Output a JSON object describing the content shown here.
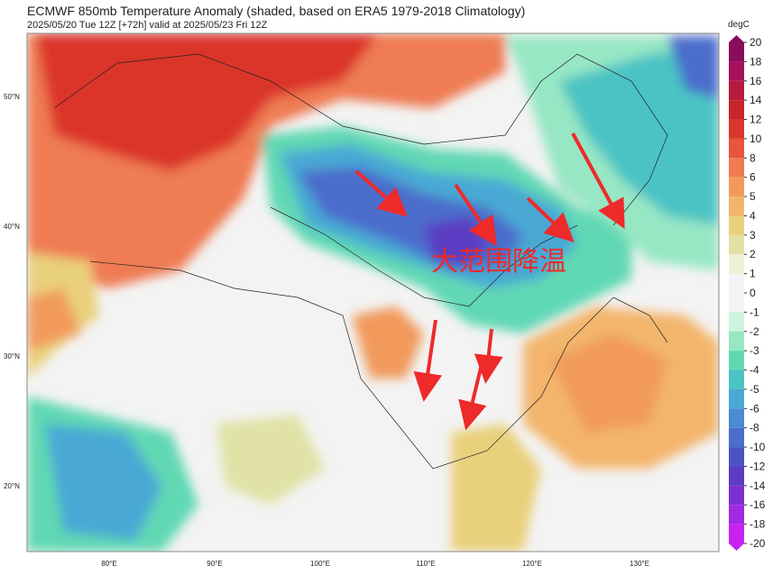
{
  "map": {
    "title": "ECMWF 850mb Temperature Anomaly (shaded, based on ERA5 1979-2018 Climatology)",
    "subtitle": "2025/05/20 Tue 12Z [+72h] valid at 2025/05/23 Fri 12Z",
    "annotation": "大范围降温",
    "lat_labels": [
      "50°N",
      "40°N",
      "30°N",
      "20°N"
    ],
    "lon_labels": [
      "80°E",
      "90°E",
      "100°E",
      "110°E",
      "120°E",
      "130°E"
    ]
  },
  "colorbar": {
    "unit": "degC",
    "ticks": [
      20,
      18,
      16,
      14,
      12,
      10,
      8,
      6,
      5,
      4,
      3,
      2,
      1,
      0,
      -1,
      -2,
      -3,
      -4,
      -5,
      -6,
      -8,
      -10,
      -12,
      -14,
      -16,
      -18,
      -20
    ],
    "colors": [
      "#8a0c5c",
      "#a3115a",
      "#b81a3e",
      "#c9242a",
      "#db352c",
      "#e8553c",
      "#ef7b52",
      "#f29a5c",
      "#f3b56c",
      "#e9d07a",
      "#e0e2a6",
      "#eef1d4",
      "#f4f4f4",
      "#f4f4f4",
      "#cdf2df",
      "#97e7c4",
      "#60d8b3",
      "#4cc3c4",
      "#4aa9d4",
      "#4a8bd1",
      "#4b6dcc",
      "#4b53c2",
      "#5a3dc2",
      "#7b30d2",
      "#a02ae2",
      "#c822f2"
    ]
  }
}
